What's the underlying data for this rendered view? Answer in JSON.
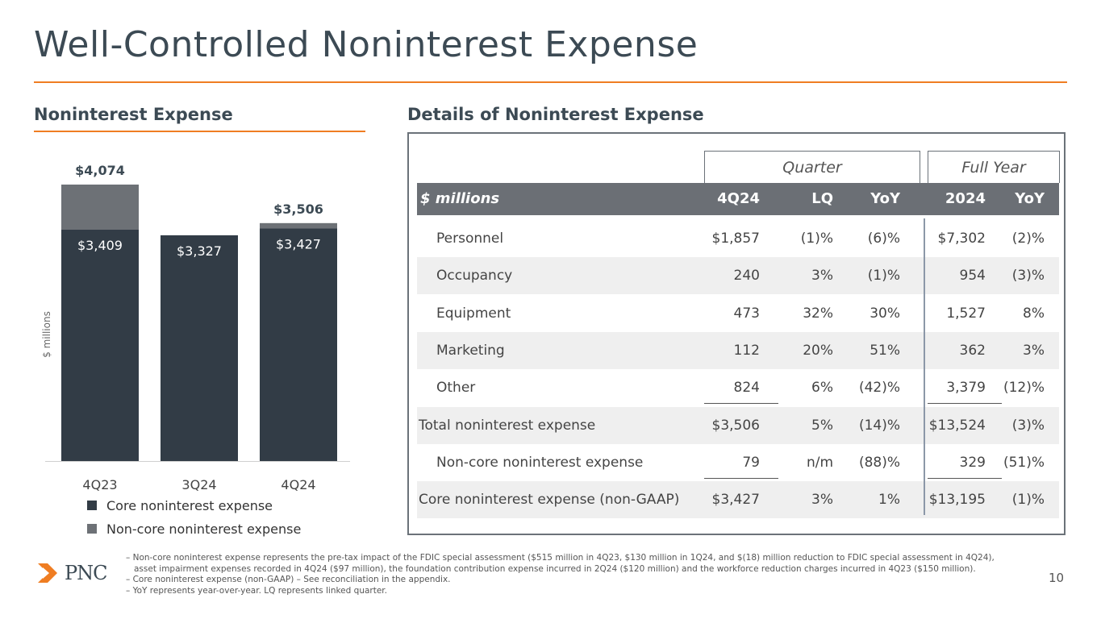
{
  "title": "Well-Controlled Noninterest Expense",
  "left_section": "Noninterest Expense",
  "right_section": "Details of Noninterest Expense",
  "colors": {
    "core": "#323c46",
    "noncore": "#6d7176",
    "accent": "#ef7d22"
  },
  "chart_data": {
    "type": "bar",
    "stacked": true,
    "categories": [
      "4Q23",
      "3Q24",
      "4Q24"
    ],
    "series": [
      {
        "name": "Core noninterest expense",
        "values": [
          3409,
          3327,
          3427
        ],
        "labels": [
          "$3,409",
          "$3,327",
          "$3,427"
        ]
      },
      {
        "name": "Non-core noninterest expense",
        "values": [
          665,
          0,
          79
        ]
      }
    ],
    "totals": [
      4074,
      3327,
      3506
    ],
    "total_labels": [
      "$4,074",
      "",
      "$3,506"
    ],
    "ylabel": "$ millions",
    "ylim": [
      0,
      4300
    ],
    "legend_position": "bottom-left"
  },
  "table": {
    "group_quarter": "Quarter",
    "group_full_year": "Full Year",
    "header": {
      "label": "$ millions",
      "c1": "4Q24",
      "c2": "LQ",
      "c3": "YoY",
      "c4": "2024",
      "c5": "YoY"
    },
    "rows": [
      {
        "label": "Personnel",
        "c1": "$1,857",
        "c2": "(1)%",
        "c3": "(6)%",
        "c4": "$7,302",
        "c5": "(2)%"
      },
      {
        "label": "Occupancy",
        "c1": "240",
        "c2": "3%",
        "c3": "(1)%",
        "c4": "954",
        "c5": "(3)%"
      },
      {
        "label": "Equipment",
        "c1": "473",
        "c2": "32%",
        "c3": "30%",
        "c4": "1,527",
        "c5": "8%"
      },
      {
        "label": "Marketing",
        "c1": "112",
        "c2": "20%",
        "c3": "51%",
        "c4": "362",
        "c5": "3%"
      },
      {
        "label": "Other",
        "c1": "824",
        "c2": "6%",
        "c3": "(42)%",
        "c4": "3,379",
        "c5": "(12)%"
      },
      {
        "label": "Total noninterest expense",
        "c1": "$3,506",
        "c2": "5%",
        "c3": "(14)%",
        "c4": "$13,524",
        "c5": "(3)%"
      },
      {
        "label": "Non-core noninterest expense",
        "c1": "79",
        "c2": "n/m",
        "c3": "(88)%",
        "c4": "329",
        "c5": "(51)%"
      },
      {
        "label": "Core noninterest expense (non-GAAP)",
        "c1": "$3,427",
        "c2": "3%",
        "c3": "1%",
        "c4": "$13,195",
        "c5": "(1)%"
      }
    ]
  },
  "footnotes": [
    "– Non-core noninterest expense represents the pre-tax impact of the FDIC special assessment ($515 million in 4Q23, $130 million in 1Q24, and $(18) million reduction to FDIC special assessment in 4Q24),",
    "asset impairment expenses recorded in 4Q24 ($97 million), the foundation contribution expense incurred in 2Q24 ($120 million) and the workforce reduction charges incurred in 4Q23 ($150 million).",
    "– Core noninterest expense (non-GAAP) – See reconciliation in the appendix.",
    "– YoY represents year-over-year. LQ represents linked quarter."
  ],
  "logo_text": "PNC",
  "page_number": "10"
}
